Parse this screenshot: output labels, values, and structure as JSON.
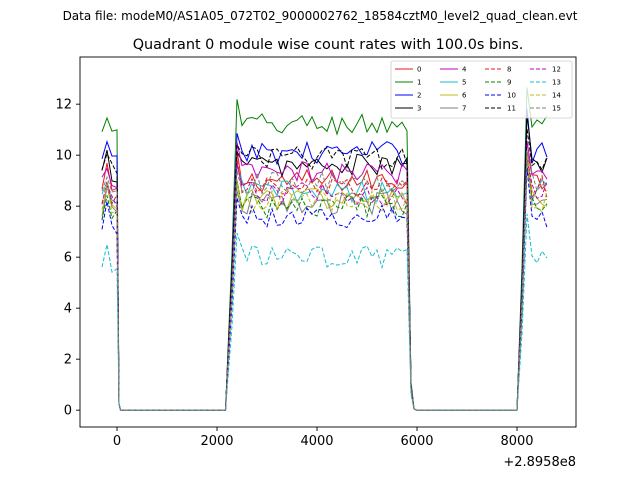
{
  "header": {
    "suptitle": "Data file: modeM0/AS1A05_072T02_9000002762_18584cztM0_level2_quad_clean.evt"
  },
  "chart_data": {
    "type": "line",
    "title": "Quadrant 0 module wise count rates with 100.0s bins.",
    "xlabel": "",
    "ylabel": "",
    "x_offset_label": "+2.8958e8",
    "xlim": [
      -740,
      9180
    ],
    "ylim": [
      -0.66,
      13.85
    ],
    "xticks": [
      0,
      2000,
      4000,
      6000,
      8000
    ],
    "xtick_labels": [
      "0",
      "2000",
      "4000",
      "6000",
      "8000"
    ],
    "yticks": [
      0,
      2,
      4,
      6,
      8,
      10,
      12
    ],
    "ytick_labels": [
      "0",
      "2",
      "4",
      "6",
      "8",
      "10",
      "12"
    ],
    "legend": {
      "placement": "top-right",
      "columns": 4
    },
    "gap_start": 70,
    "segments": [
      {
        "start": -300,
        "end": 30,
        "step": 100
      },
      {
        "start": 2200,
        "end": 5840,
        "step": 100
      },
      {
        "start": 5980,
        "end": 7950,
        "step": 100
      },
      {
        "start": 8080,
        "end": 8620,
        "step": 100
      }
    ],
    "series": [
      {
        "name": "0",
        "color": "#e41a1c",
        "dash": false,
        "level": 9.0
      },
      {
        "name": "1",
        "color": "#008000",
        "dash": false,
        "level": 11.2
      },
      {
        "name": "2",
        "color": "#0000ff",
        "dash": false,
        "level": 10.1
      },
      {
        "name": "3",
        "color": "#000000",
        "dash": false,
        "level": 9.6
      },
      {
        "name": "4",
        "color": "#c000c0",
        "dash": false,
        "level": 9.3
      },
      {
        "name": "5",
        "color": "#17becf",
        "dash": false,
        "level": 8.6
      },
      {
        "name": "6",
        "color": "#bcbd22",
        "dash": false,
        "level": 8.3
      },
      {
        "name": "7",
        "color": "#7f7f7f",
        "dash": false,
        "level": 8.1
      },
      {
        "name": "8",
        "color": "#e41a1c",
        "dash": true,
        "level": 8.7
      },
      {
        "name": "9",
        "color": "#008000",
        "dash": true,
        "level": 8.0
      },
      {
        "name": "10",
        "color": "#0000ff",
        "dash": true,
        "level": 7.6
      },
      {
        "name": "11",
        "color": "#000000",
        "dash": true,
        "level": 9.9
      },
      {
        "name": "12",
        "color": "#c000c0",
        "dash": true,
        "level": 8.5
      },
      {
        "name": "13",
        "color": "#17becf",
        "dash": true,
        "level": 6.0
      },
      {
        "name": "14",
        "color": "#bcbd22",
        "dash": true,
        "level": 8.2
      },
      {
        "name": "15",
        "color": "#7f7f7f",
        "dash": true,
        "level": 8.9
      }
    ]
  }
}
